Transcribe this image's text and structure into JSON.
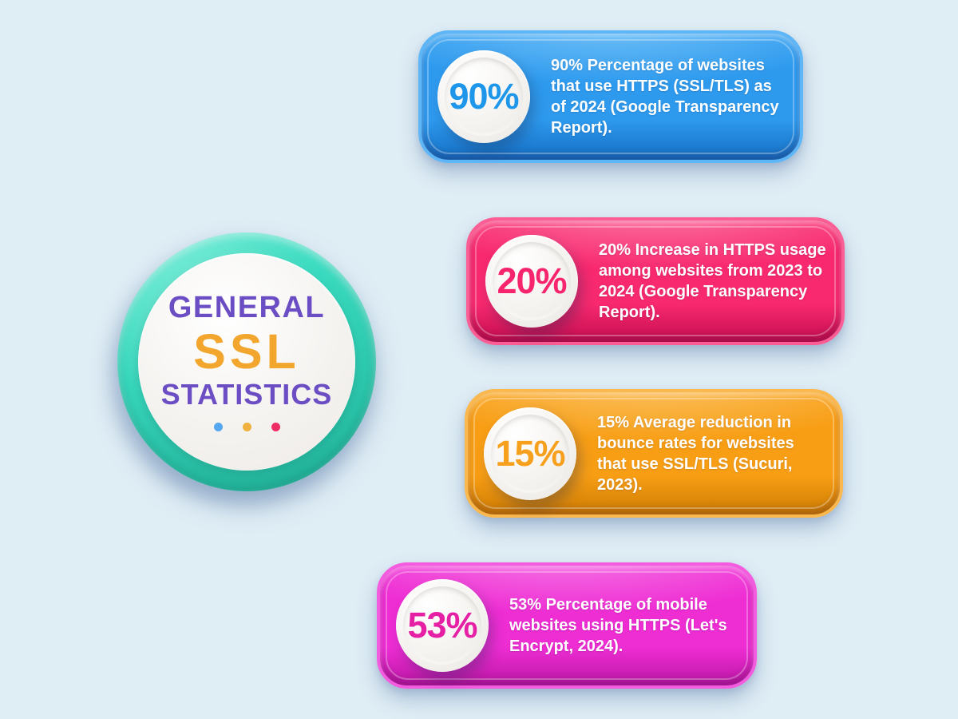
{
  "background_color": "#DFEDF5",
  "badge": {
    "line1": "GENERAL",
    "line2": "SSL",
    "line3": "STATISTICS",
    "line1_color": "#6C4EC4",
    "line2_color": "#F2A62E",
    "line3_color": "#6C4EC4",
    "ring_color": "#3ADCC1",
    "face_color": "#F3F1EE",
    "dots": [
      "#55A8F0",
      "#F0B23E",
      "#EE2D64"
    ]
  },
  "cards": [
    {
      "value": "90%",
      "text": "90% Percentage of websites\nthat use HTTPS (SSL/TLS) as\nof 2024 (Google Transparency\nReport).",
      "color_main": "#2E9AEE",
      "color_light": "#7AC6F9",
      "color_dark": "#156FC4",
      "color_rim": "#5FB6F6",
      "color_value": "#1E96E9"
    },
    {
      "value": "20%",
      "text": "20% Increase in HTTPS usage\namong websites from 2023 to\n2024 (Google Transparency\nReport).",
      "color_main": "#F8296F",
      "color_light": "#FC7BA8",
      "color_dark": "#C60E51",
      "color_rim": "#FB5E94",
      "color_value": "#F7256D"
    },
    {
      "value": "15%",
      "text": "15% Average reduction in\nbounce rates for websites\nthat use SSL/TLS (Sucuri,\n2023).",
      "color_main": "#F89E15",
      "color_light": "#FBC568",
      "color_dark": "#CE7C03",
      "color_rim": "#FAB84E",
      "color_value": "#F7A01D"
    },
    {
      "value": "53%",
      "text": "53% Percentage of mobile\nwebsites using HTTPS (Let's\nEncrypt, 2024).",
      "color_main": "#EE2DD3",
      "color_light": "#F77BE7",
      "color_dark": "#BC17A6",
      "color_rim": "#F45CDF",
      "color_value": "#E620A4"
    }
  ]
}
